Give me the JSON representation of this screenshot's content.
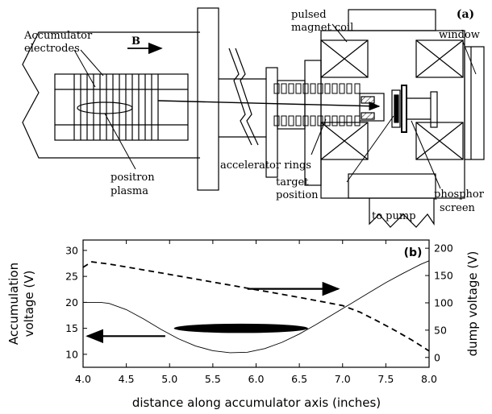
{
  "panel_a": {
    "label": "(a)",
    "field_label": "B",
    "labels": {
      "accumulator_electrodes_1": "Accumulator",
      "accumulator_electrodes_2": "electrodes",
      "positron_plasma_1": "positron",
      "positron_plasma_2": "plasma",
      "pulsed_magnet_coil_1": "pulsed",
      "pulsed_magnet_coil_2": "magnet coil",
      "window": "window",
      "accelerator_rings": "accelerator rings",
      "target_position_1": "target",
      "target_position_2": "position",
      "to_pump": "to pump",
      "phosphor_screen_1": "phosphor",
      "phosphor_screen_2": "screen"
    }
  },
  "chart_data": {
    "type": "line",
    "panel_label": "(b)",
    "xlabel": "distance along accumulator axis (inches)",
    "ylabel_left_1": "Accumulation",
    "ylabel_left_2": "voltage (V)",
    "ylabel_right": "dump voltage (V)",
    "xlim": [
      4.0,
      8.0
    ],
    "ylim_left": [
      7.5,
      32.0
    ],
    "ylim_right": [
      -18.0,
      215.0
    ],
    "x_ticks": [
      "4.0",
      "4.5",
      "5.0",
      "5.5",
      "6.0",
      "6.5",
      "7.0",
      "7.5",
      "8.0"
    ],
    "y_left_ticks": [
      "10",
      "15",
      "20",
      "25",
      "30"
    ],
    "y_right_ticks": [
      "0",
      "50",
      "100",
      "150",
      "200"
    ],
    "series": [
      {
        "axis": "left",
        "style": "solid-thin",
        "x": [
          4.0,
          4.2,
          4.3,
          4.5,
          4.7,
          4.9,
          5.1,
          5.3,
          5.5,
          5.7,
          5.9,
          6.1,
          6.3,
          6.5,
          6.7,
          6.9,
          7.1,
          7.3,
          7.5,
          7.7,
          7.9,
          8.0
        ],
        "y": [
          20.0,
          20.0,
          19.8,
          18.6,
          16.8,
          14.8,
          13.0,
          11.6,
          10.7,
          10.3,
          10.4,
          11.1,
          12.3,
          13.9,
          15.8,
          17.8,
          19.8,
          21.8,
          23.8,
          25.6,
          27.3,
          28.0
        ]
      },
      {
        "axis": "right",
        "style": "dashed",
        "x": [
          4.0,
          4.1,
          4.3,
          4.6,
          5.0,
          5.5,
          6.0,
          6.5,
          6.8,
          7.0,
          7.2,
          7.4,
          7.6,
          7.8,
          8.0
        ],
        "y": [
          165,
          175,
          171,
          163,
          152,
          138,
          124,
          110,
          101,
          95,
          83,
          67,
          50,
          32,
          12
        ]
      }
    ],
    "arrows": [
      {
        "x_start": 4.95,
        "x_end": 4.05,
        "y_left": 13.5,
        "points_to": "left-axis"
      },
      {
        "x_start": 5.9,
        "x_end": 6.95,
        "y_left": 22.6,
        "points_to": "right-axis"
      }
    ],
    "plasma_ellipse": {
      "x_from": 5.05,
      "x_to": 6.6,
      "y_left": 15.0,
      "height_v": 1.8
    }
  },
  "colors": {
    "ink": "#000000",
    "hatch_fill": "#ffffff",
    "background": "#ffffff"
  }
}
